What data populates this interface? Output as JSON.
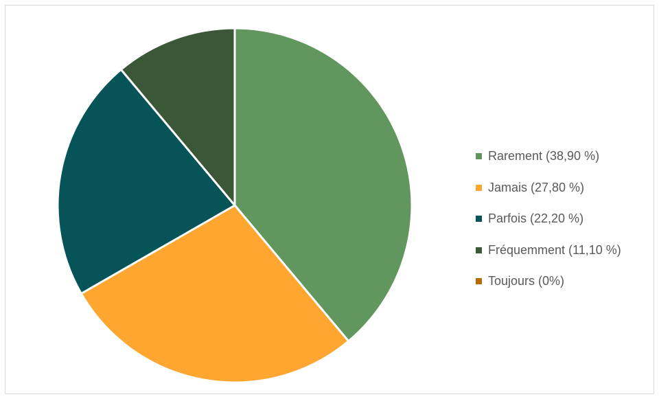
{
  "chart_data": {
    "type": "pie",
    "categories": [
      "Rarement",
      "Jamais",
      "Parfois",
      "Fréquemment",
      "Toujours"
    ],
    "values": [
      38.9,
      27.8,
      22.2,
      11.1,
      0
    ],
    "colors": [
      "#62965F",
      "#FFA630",
      "#075458",
      "#3B5738",
      "#B86A00"
    ],
    "legend_position": "right",
    "legend": [
      {
        "label": "Rarement (38,90 %)",
        "color": "#62965F"
      },
      {
        "label": "Jamais (27,80 %)",
        "color": "#FFA630"
      },
      {
        "label": "Parfois (22,20 %)",
        "color": "#075458"
      },
      {
        "label": "Fréquemment (11,10 %)",
        "color": "#3B5738"
      },
      {
        "label": "Toujours (0%)",
        "color": "#B86A00"
      }
    ]
  }
}
